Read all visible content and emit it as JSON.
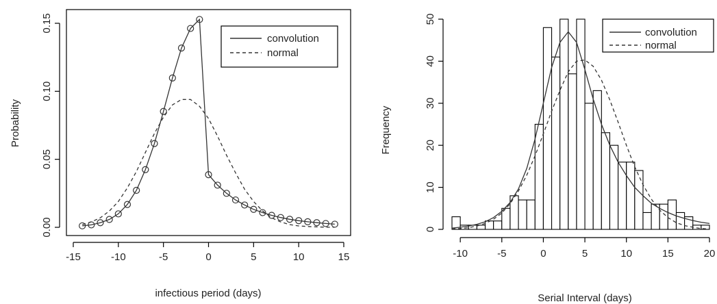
{
  "chart_data": [
    {
      "type": "line",
      "xlabel": "infectious period (days)",
      "ylabel": "Probability",
      "xlim": [
        -15,
        15
      ],
      "ylim": [
        0,
        0.15
      ],
      "xticks": [
        -15,
        -10,
        -5,
        0,
        5,
        10,
        15
      ],
      "yticks": [
        0.0,
        0.05,
        0.1,
        0.15
      ],
      "ytick_labels": [
        "0.00",
        "0.05",
        "0.10",
        "0.15"
      ],
      "legend": {
        "position": "top-right",
        "entries": [
          "convolution",
          "normal"
        ]
      },
      "grid": false,
      "series": [
        {
          "name": "convolution",
          "style": "solid-with-circles",
          "x": [
            -14,
            -13,
            -12,
            -11,
            -10,
            -9,
            -8,
            -7,
            -6,
            -5,
            -4,
            -3,
            -2,
            -1,
            0,
            1,
            2,
            3,
            4,
            5,
            6,
            7,
            8,
            9,
            10,
            11,
            12,
            13,
            14
          ],
          "y": [
            0.0011,
            0.0018,
            0.0034,
            0.0058,
            0.0099,
            0.0168,
            0.0272,
            0.0424,
            0.0616,
            0.0852,
            0.1098,
            0.1318,
            0.1462,
            0.1528,
            0.0387,
            0.031,
            0.025,
            0.0201,
            0.0164,
            0.0132,
            0.0108,
            0.0088,
            0.0072,
            0.0059,
            0.0049,
            0.0041,
            0.0034,
            0.0028,
            0.0023
          ]
        },
        {
          "name": "normal",
          "style": "dashed",
          "x": [
            -14,
            -13,
            -12,
            -11,
            -10,
            -9,
            -8,
            -7,
            -6,
            -5,
            -4,
            -3,
            -2,
            -1,
            0,
            1,
            2,
            3,
            4,
            5,
            6,
            7,
            8,
            9,
            10,
            11,
            12,
            13,
            14
          ],
          "y": [
            0.002,
            0.004,
            0.007,
            0.012,
            0.019,
            0.029,
            0.041,
            0.055,
            0.069,
            0.081,
            0.09,
            0.094,
            0.094,
            0.089,
            0.08,
            0.067,
            0.053,
            0.04,
            0.028,
            0.019,
            0.012,
            0.007,
            0.004,
            0.002,
            0.001,
            0.0006,
            0.0003,
            0.0001,
            5e-05
          ]
        }
      ]
    },
    {
      "type": "bar",
      "xlabel": "Serial Interval (days)",
      "ylabel": "Frequency",
      "xlim": [
        -11,
        20
      ],
      "ylim": [
        0,
        50
      ],
      "xticks": [
        -10,
        -5,
        0,
        5,
        10,
        15,
        20
      ],
      "yticks": [
        0,
        10,
        20,
        30,
        40,
        50
      ],
      "legend": {
        "position": "top-right",
        "entries": [
          "convolution",
          "normal"
        ]
      },
      "grid": false,
      "histogram": {
        "bin_width": 1,
        "bin_starts": [
          -11,
          -10,
          -9,
          -8,
          -7,
          -6,
          -5,
          -4,
          -3,
          -2,
          -1,
          0,
          1,
          2,
          3,
          4,
          5,
          6,
          7,
          8,
          9,
          10,
          11,
          12,
          13,
          14,
          15,
          16,
          17,
          18,
          19
        ],
        "counts": [
          3,
          1,
          1,
          1,
          2,
          2,
          5,
          8,
          7,
          7,
          25,
          48,
          41,
          50,
          37,
          50,
          30,
          33,
          23,
          20,
          16,
          16,
          14,
          4,
          6,
          6,
          7,
          4,
          3,
          1,
          1
        ]
      },
      "series": [
        {
          "name": "convolution",
          "style": "solid",
          "x": [
            -11,
            -10,
            -9,
            -8,
            -7,
            -6,
            -5,
            -4,
            -3,
            -2,
            -1,
            0,
            1,
            2,
            3,
            4,
            5,
            6,
            7,
            8,
            9,
            10,
            11,
            12,
            13,
            14,
            15,
            16,
            17,
            18,
            19,
            20
          ],
          "y": [
            0.3,
            0.5,
            0.8,
            1.2,
            1.8,
            2.8,
            4.3,
            6.4,
            9.6,
            14.5,
            21.5,
            30.0,
            38.5,
            44.5,
            47.0,
            44.5,
            38.0,
            31.0,
            25.0,
            20.0,
            16.0,
            12.8,
            10.0,
            8.0,
            6.2,
            5.0,
            4.0,
            3.2,
            2.6,
            2.1,
            1.7,
            1.4
          ]
        },
        {
          "name": "normal",
          "style": "dashed",
          "x": [
            -11,
            -10,
            -9,
            -8,
            -7,
            -6,
            -5,
            -4,
            -3,
            -2,
            -1,
            0,
            1,
            2,
            3,
            4,
            5,
            6,
            7,
            8,
            9,
            10,
            11,
            12,
            13,
            14,
            15,
            16,
            17,
            18,
            19,
            20
          ],
          "y": [
            0.1,
            0.2,
            0.4,
            0.8,
            1.4,
            2.4,
            3.9,
            6.1,
            9.1,
            12.9,
            17.5,
            22.7,
            28.1,
            33.1,
            37.5,
            40.0,
            40.3,
            38.8,
            35.5,
            30.8,
            25.5,
            20.0,
            14.9,
            10.6,
            7.2,
            4.6,
            2.8,
            1.6,
            0.9,
            0.5,
            0.2,
            0.1
          ]
        }
      ]
    }
  ]
}
